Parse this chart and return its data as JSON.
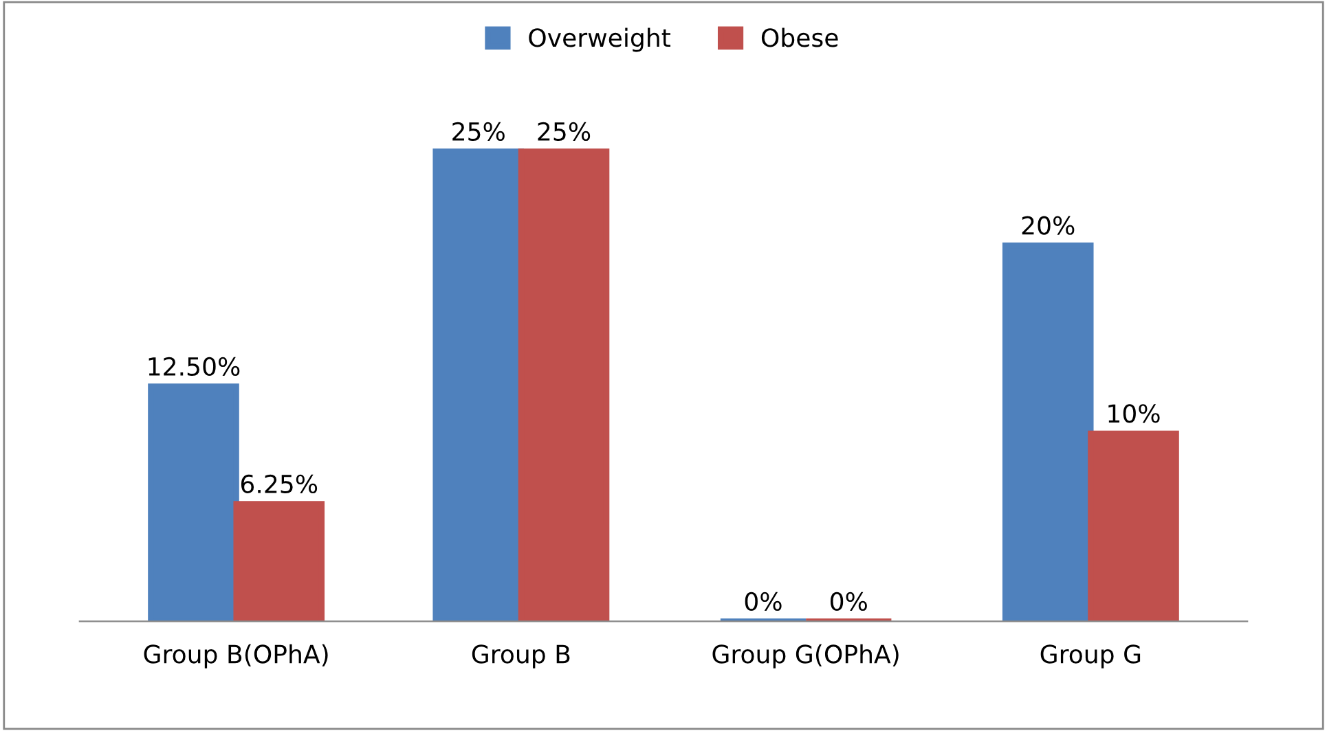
{
  "chart_data": {
    "type": "bar",
    "categories": [
      "Group B(OPhA)",
      "Group B",
      "Group G(OPhA)",
      "Group G"
    ],
    "series": [
      {
        "name": "Overweight",
        "color": "#4f81bd",
        "values": [
          12.5,
          25,
          0,
          20
        ],
        "value_labels": [
          "12.50%",
          "25%",
          "0%",
          "20%"
        ]
      },
      {
        "name": "Obese",
        "color": "#c0504d",
        "values": [
          6.25,
          25,
          0,
          10
        ],
        "value_labels": [
          "6.25%",
          "25%",
          "0%",
          "10%"
        ]
      }
    ],
    "legend": "top",
    "grid": false
  }
}
